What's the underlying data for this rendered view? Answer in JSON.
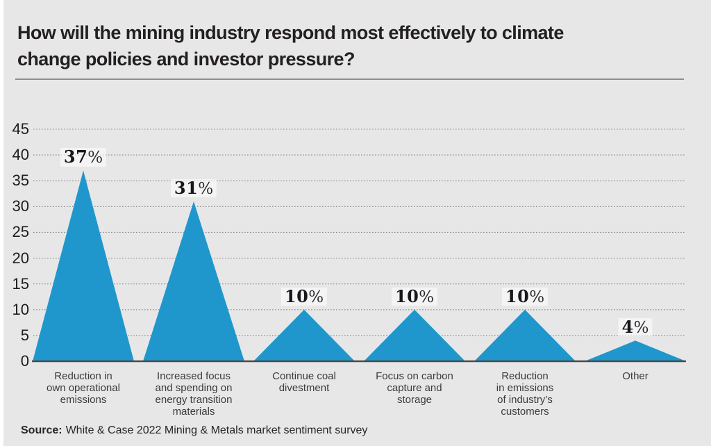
{
  "page": {
    "background": "#e7e7e8"
  },
  "header": {
    "title": "How will the mining industry respond most effectively to climate\nchange policies and investor pressure?"
  },
  "source": {
    "label": "Source:",
    "text": "White & Case 2022 Mining & Metals market sentiment survey"
  },
  "chart_data": {
    "type": "area",
    "variant": "triangle-peaks",
    "title": "How will the mining industry respond most effectively to climate change policies and investor pressure?",
    "categories": [
      "Reduction in own operational emissions",
      "Increased focus and spending on energy transition materials",
      "Continue coal divestment",
      "Focus on carbon capture and storage",
      "Reduction in emissions of industry’s customers",
      "Other"
    ],
    "category_lines": [
      [
        "Reduction in",
        "own operational",
        "emissions"
      ],
      [
        "Increased focus",
        "and spending on",
        "energy transition",
        "materials"
      ],
      [
        "Continue coal",
        "divestment"
      ],
      [
        "Focus on carbon",
        "capture and",
        "storage"
      ],
      [
        "Reduction",
        "in emissions",
        "of industry’s",
        "customers"
      ],
      [
        "Other"
      ]
    ],
    "values": [
      37,
      31,
      10,
      10,
      10,
      4
    ],
    "value_labels": [
      "37%",
      "31%",
      "10%",
      "10%",
      "10%",
      "4%"
    ],
    "unit": "%",
    "xlabel": "",
    "ylabel": "",
    "ylim": [
      0,
      45
    ],
    "yticks": [
      0,
      5,
      10,
      15,
      20,
      25,
      30,
      35,
      40,
      45
    ],
    "grid": "horizontal-dotted",
    "legend": "none",
    "colors": {
      "fill": "#1f97cd",
      "background": "#e7e7e8",
      "gridline": "#858585",
      "baseline": "#4c4a48",
      "text": "#242022"
    }
  }
}
